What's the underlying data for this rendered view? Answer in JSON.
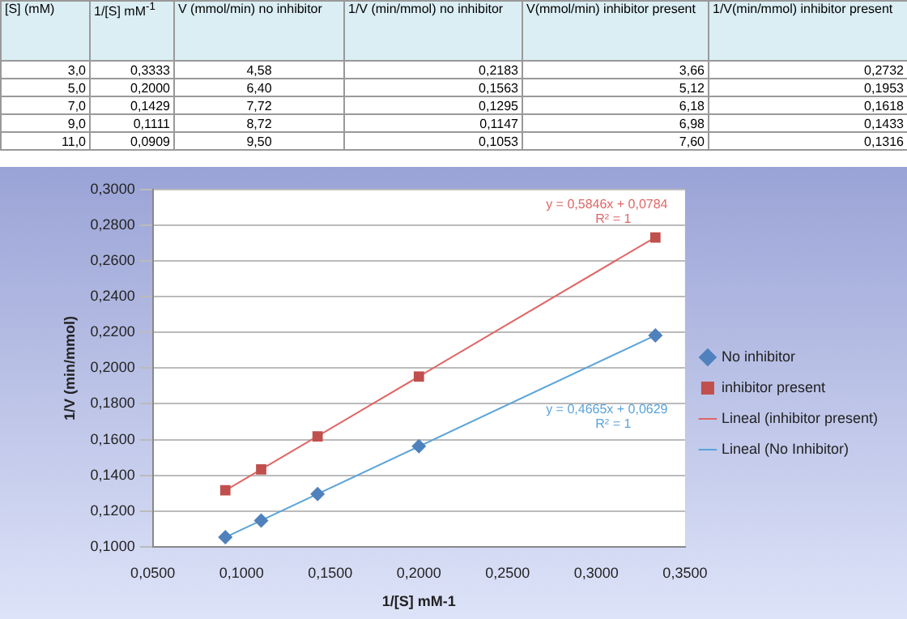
{
  "chart_data": {
    "type": "scatter",
    "xlabel": "1/[S] mM-1",
    "ylabel": "1/V (min/mmol)",
    "xlim": [
      0.05,
      0.35
    ],
    "xticks": [
      {
        "value": 0.05,
        "label": "0,0500"
      },
      {
        "value": 0.1,
        "label": "0,1000"
      },
      {
        "value": 0.15,
        "label": "0,1500"
      },
      {
        "value": 0.2,
        "label": "0,2000"
      },
      {
        "value": 0.25,
        "label": "0,2500"
      },
      {
        "value": 0.3,
        "label": "0,3000"
      },
      {
        "value": 0.35,
        "label": "0,3500"
      }
    ],
    "ylim": [
      0.1,
      0.3
    ],
    "yticks": [
      {
        "value": 0.1,
        "label": "0,1000"
      },
      {
        "value": 0.12,
        "label": "0,1200"
      },
      {
        "value": 0.14,
        "label": "0,1400"
      },
      {
        "value": 0.16,
        "label": "0,1600"
      },
      {
        "value": 0.18,
        "label": "0,1800"
      },
      {
        "value": 0.2,
        "label": "0,2000"
      },
      {
        "value": 0.22,
        "label": "0,2200"
      },
      {
        "value": 0.24,
        "label": "0,2400"
      },
      {
        "value": 0.26,
        "label": "0,2600"
      },
      {
        "value": 0.28,
        "label": "0,2800"
      },
      {
        "value": 0.3,
        "label": "0,3000"
      }
    ],
    "grid": "y",
    "legend": "right",
    "series": [
      {
        "name": "No inhibitor",
        "type": "scatter",
        "marker": "diamond",
        "color": "#4f81bd",
        "x": [
          0.3333,
          0.2,
          0.1429,
          0.1111,
          0.0909
        ],
        "values": [
          0.2183,
          0.1563,
          0.1295,
          0.1147,
          0.1053
        ]
      },
      {
        "name": "inhibitor present",
        "type": "scatter",
        "marker": "square",
        "color": "#c0504d",
        "x": [
          0.3333,
          0.2,
          0.1429,
          0.1111,
          0.0909
        ],
        "values": [
          0.2732,
          0.1953,
          0.1618,
          0.1433,
          0.1316
        ]
      },
      {
        "name": "Lineal (inhibitor present)",
        "type": "line",
        "marker": "none",
        "color": "#e06666",
        "x": [
          0.0909,
          0.3333
        ],
        "values": [
          0.1315,
          0.2733
        ]
      },
      {
        "name": "Lineal (No Inhibitor)",
        "type": "line",
        "marker": "none",
        "color": "#5ba3d9",
        "x": [
          0.0909,
          0.3333
        ],
        "values": [
          0.1053,
          0.2184
        ]
      }
    ],
    "annotations": [
      "y = 0,5846x + 0,0784",
      "R² = 1",
      "y = 0,4665x + 0,0629",
      "R² = 1",
      "[S] (mM)",
      "1/[S] mM$^{-1}$",
      "V (mmol/min) no inhibitor",
      "1/V (min/mmol) no inhibitor",
      "V(mmol/min) inhibitor present",
      "1/V(min/mmol) inhibitor present",
      "3,0",
      "0,3333",
      "4,58",
      "0,2183",
      "3,66",
      "0,2732",
      "5,0",
      "0,2000",
      "6,40",
      "0,1563",
      "5,12",
      "0,1953",
      "7,0",
      "0,1429",
      "7,72",
      "0,1295",
      "6,18",
      "0,1618",
      "9,0",
      "0,1111",
      "8,72",
      "0,1147",
      "6,98",
      "0,1433",
      "11,0",
      "0,0909",
      "9,50",
      "0,1053",
      "7,60",
      "0,1316"
    ]
  }
}
